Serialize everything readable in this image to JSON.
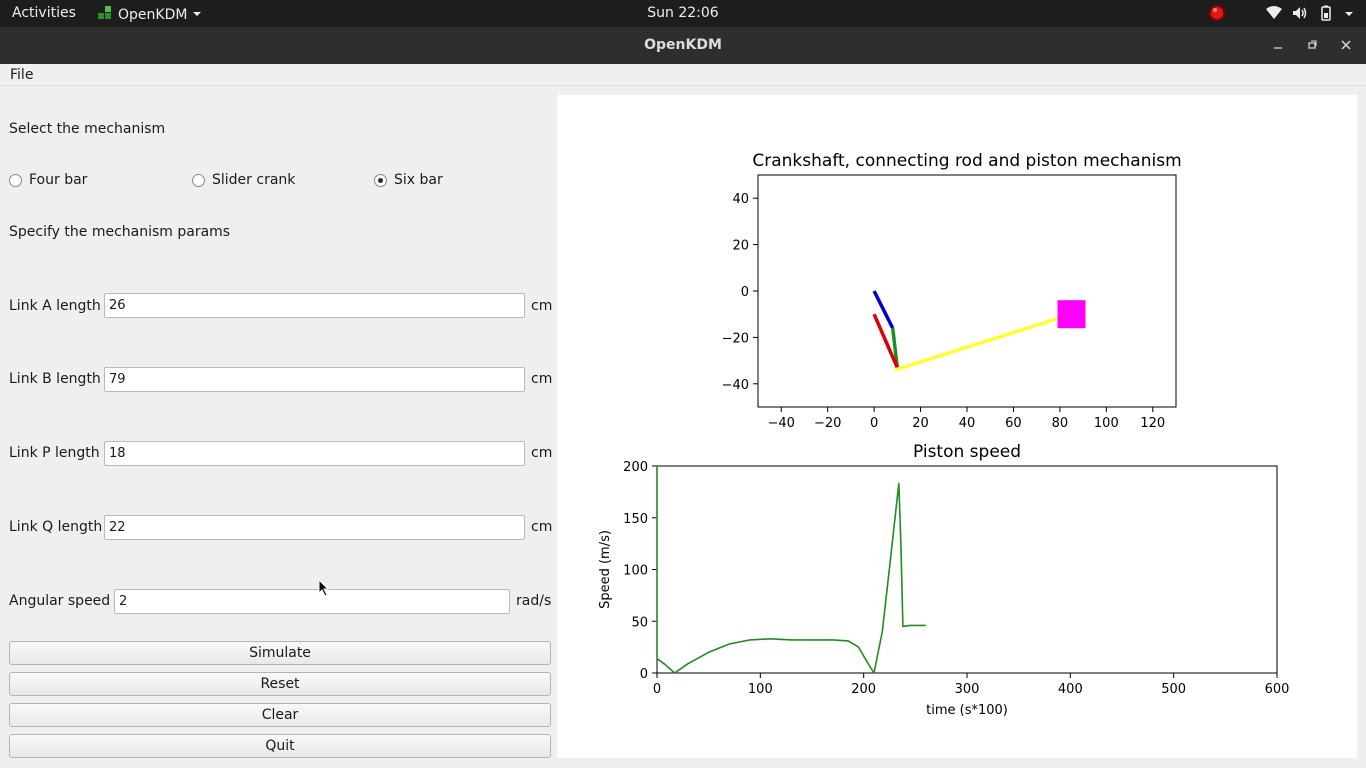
{
  "topbar": {
    "activities": "Activities",
    "app_menu": "OpenKDM",
    "clock": "Sun 22:06",
    "icons": [
      "record-indicator-icon",
      "wifi-icon",
      "volume-icon",
      "battery-icon",
      "chevron-down-icon"
    ]
  },
  "window": {
    "title": "OpenKDM",
    "controls": [
      "minimize-icon",
      "maximize-icon",
      "close-icon"
    ]
  },
  "menubar": {
    "file": "File"
  },
  "form": {
    "select_heading": "Select the mechanism",
    "mechanisms": [
      {
        "label": "Four bar",
        "selected": false
      },
      {
        "label": "Slider crank",
        "selected": false
      },
      {
        "label": "Six bar",
        "selected": true
      }
    ],
    "params_heading": "Specify the mechanism params",
    "fields": [
      {
        "label": "Link A length",
        "value": "26",
        "unit": "cm"
      },
      {
        "label": "Link B length",
        "value": "79",
        "unit": "cm"
      },
      {
        "label": "Link P length",
        "value": "18",
        "unit": "cm"
      },
      {
        "label": "Link Q length",
        "value": "22",
        "unit": "cm"
      },
      {
        "label": "Angular speed",
        "value": "2",
        "unit": "rad/s"
      }
    ],
    "buttons": {
      "simulate": "Simulate",
      "reset": "Reset",
      "clear": "Clear",
      "quit": "Quit"
    }
  },
  "chart_data": [
    {
      "type": "line",
      "title": "Crankshaft, connecting rod and piston mechanism",
      "xlabel": "",
      "ylabel": "",
      "xlim": [
        -50,
        130
      ],
      "ylim": [
        -50,
        50
      ],
      "xticks": [
        "−40",
        "−20",
        "0",
        "20",
        "40",
        "60",
        "80",
        "100",
        "120"
      ],
      "yticks": [
        "−40",
        "−20",
        "0",
        "20",
        "40"
      ],
      "grid": false,
      "series": [
        {
          "color": "#0000cc",
          "points": [
            [
              0,
              0
            ],
            [
              8,
              -16
            ]
          ]
        },
        {
          "color": "#228b22",
          "points": [
            [
              8,
              -16
            ],
            [
              10,
              -33
            ]
          ]
        },
        {
          "color": "#dd0000",
          "points": [
            [
              0,
              -10
            ],
            [
              10,
              -33
            ]
          ]
        },
        {
          "color": "#ffff33",
          "points": [
            [
              9,
              -34
            ],
            [
              85,
              -10
            ]
          ]
        }
      ],
      "markers": [
        {
          "shape": "square",
          "color": "#ff00ff",
          "x": 85,
          "y": -10
        }
      ]
    },
    {
      "type": "line",
      "title": "Piston speed",
      "xlabel": "time ($s*100$)",
      "ylabel": "Speed ($m/s$)",
      "xlim": [
        0,
        600
      ],
      "ylim": [
        0,
        200
      ],
      "xticks": [
        "0",
        "100",
        "200",
        "300",
        "400",
        "500",
        "600"
      ],
      "yticks": [
        "0",
        "50",
        "100",
        "150",
        "200"
      ],
      "grid": false,
      "series": [
        {
          "color": "#228b22",
          "points": [
            [
              0,
              200
            ],
            [
              0,
              14
            ],
            [
              8,
              8
            ],
            [
              17,
              0
            ],
            [
              30,
              9
            ],
            [
              50,
              20
            ],
            [
              70,
              28
            ],
            [
              90,
              32
            ],
            [
              110,
              33
            ],
            [
              130,
              32
            ],
            [
              150,
              32
            ],
            [
              170,
              32
            ],
            [
              185,
              31
            ],
            [
              195,
              25
            ],
            [
              205,
              8
            ],
            [
              210,
              0
            ],
            [
              218,
              40
            ],
            [
              226,
              110
            ],
            [
              234,
              183
            ],
            [
              236,
              125
            ],
            [
              238,
              45
            ],
            [
              245,
              46
            ],
            [
              255,
              46
            ],
            [
              260,
              46
            ]
          ]
        }
      ]
    }
  ]
}
